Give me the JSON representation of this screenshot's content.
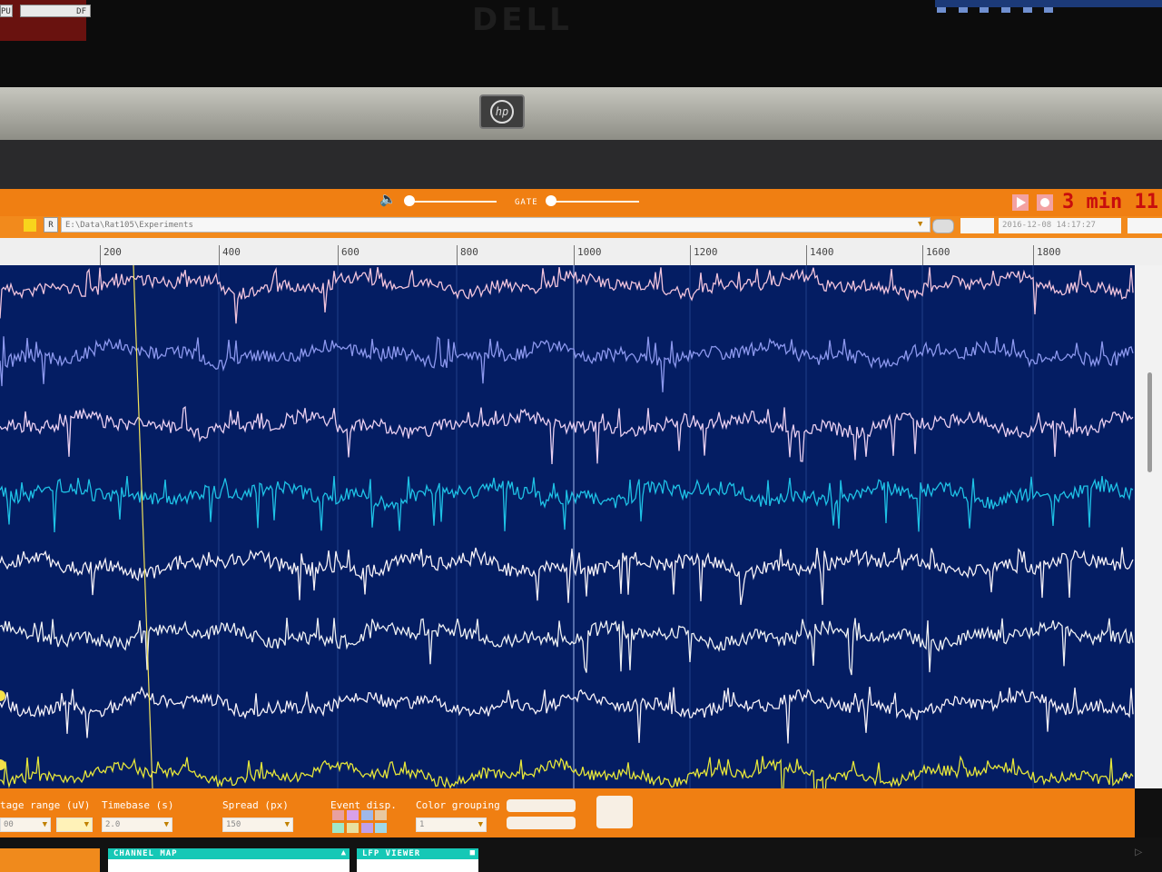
{
  "monitor_brand": "DELL",
  "laptop_brand": "hp",
  "toolbar": {
    "left_button_1": "PU",
    "left_button_2": "DF",
    "volume_icon": "speaker-icon",
    "gate_label": "GATE",
    "record_time": "3 min 11"
  },
  "path": {
    "folder_button": "R",
    "value": "E:\\Data\\Rat105\\Experiments",
    "date_value": "2016-12-08 14:17:27"
  },
  "ruler": {
    "ticks": [
      "200",
      "400",
      "600",
      "800",
      "1000",
      "1200",
      "1400",
      "1600",
      "1800"
    ]
  },
  "controls": {
    "voltage_label": "tage range (uV)",
    "timebase_label": "Timebase (s)",
    "spread_label": "Spread (px)",
    "event_label": "Event disp.",
    "color_label": "Color grouping",
    "voltage_value": "00",
    "timebase_value": "2.0",
    "spread_value": "150",
    "color_value": "1"
  },
  "bottom_tabs": {
    "channel_map": "CHANNEL MAP",
    "lfp_viewer": "LFP VIEWER"
  },
  "colors": {
    "plot_bg": "#041d63",
    "toolbar": "#f07f12",
    "timer": "#c80d0d",
    "tab_teal": "#16c8b6",
    "cursor_line": "#f2e25a"
  },
  "traces": [
    {
      "color": "#f1c4dc",
      "amp": 14,
      "spikes": 4
    },
    {
      "color": "#8c98ee",
      "amp": 15,
      "spikes": 4
    },
    {
      "color": "#e9cff0",
      "amp": 15,
      "spikes": 14
    },
    {
      "color": "#1ec2e6",
      "amp": 16,
      "spikes": 22
    },
    {
      "color": "#f6f1f6",
      "amp": 16,
      "spikes": 18
    },
    {
      "color": "#eef0f2",
      "amp": 15,
      "spikes": 12
    },
    {
      "color": "#f6f1f7",
      "amp": 14,
      "spikes": 6
    },
    {
      "color": "#e6e63a",
      "amp": 12,
      "spikes": 3
    }
  ]
}
